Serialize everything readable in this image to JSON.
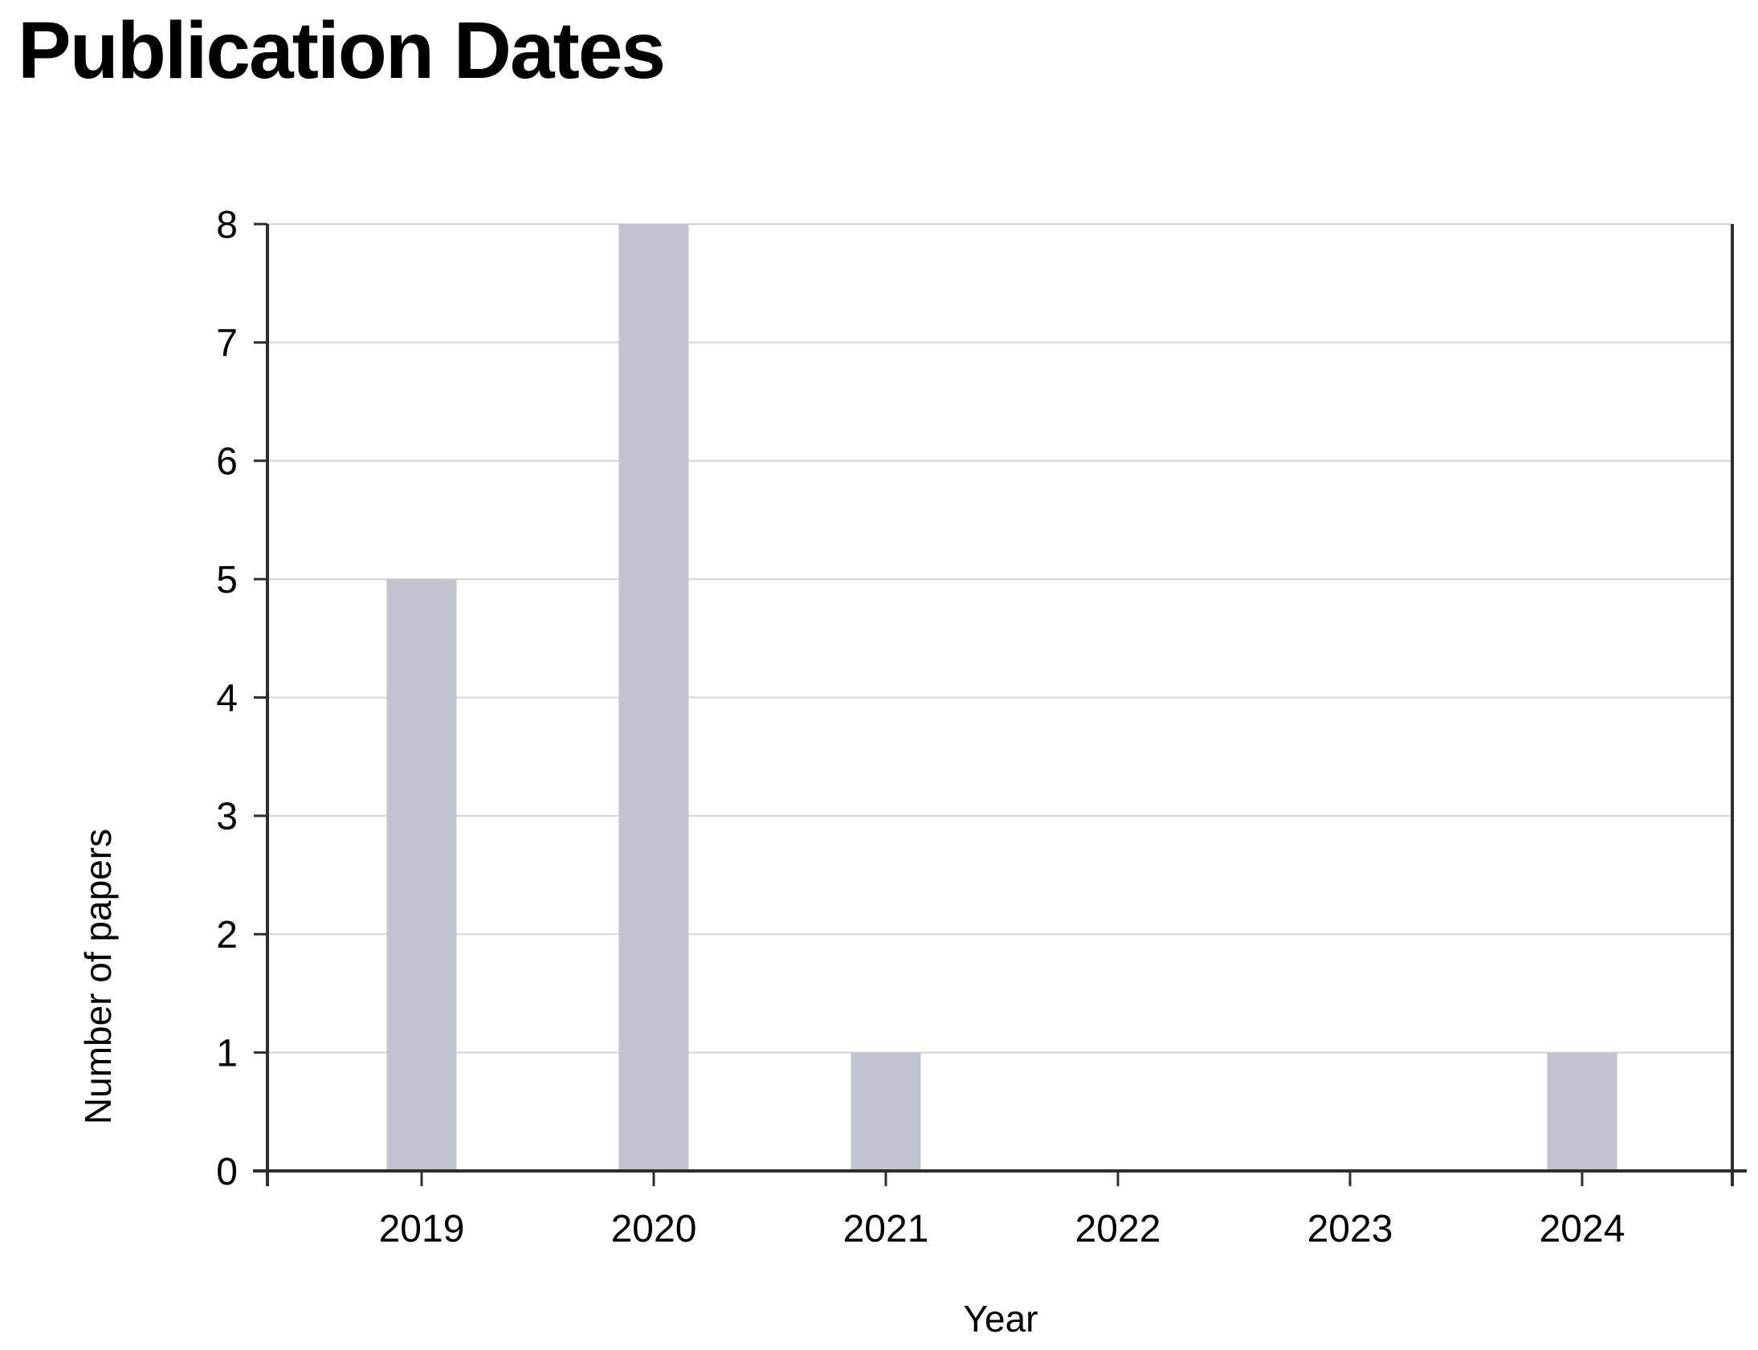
{
  "chart_data": {
    "type": "bar",
    "title": "Publication Dates",
    "xlabel": "Year",
    "ylabel": "Number of papers",
    "categories": [
      "2019",
      "2020",
      "2021",
      "2022",
      "2023",
      "2024"
    ],
    "values": [
      5,
      8,
      1,
      0,
      0,
      1
    ],
    "yticks": [
      0,
      1,
      2,
      3,
      4,
      5,
      6,
      7,
      8
    ],
    "ylim": [
      0,
      8
    ],
    "grid": "horizontal",
    "legend": "none",
    "colors": {
      "bar_fill": "#c1c3ce",
      "gridline": "#d5d5d5",
      "axis": "#2e2e2e",
      "text": "#000000",
      "background": "#ffffff"
    }
  }
}
